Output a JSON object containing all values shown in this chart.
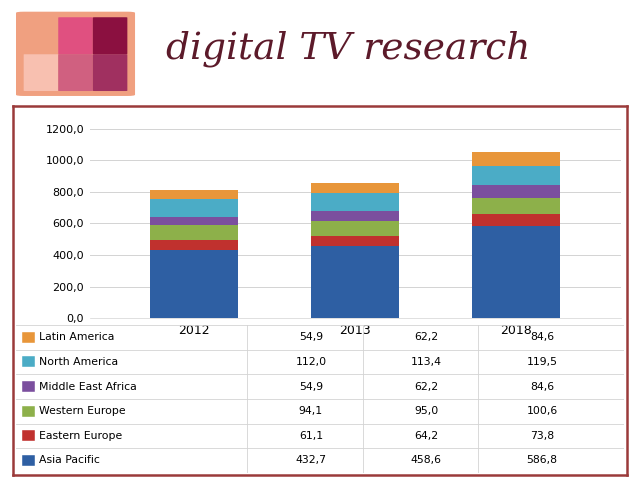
{
  "years": [
    "2012",
    "2013",
    "2018"
  ],
  "regions": [
    "Asia Pacific",
    "Eastern Europe",
    "Western Europe",
    "Middle East Africa",
    "North America",
    "Latin America"
  ],
  "colors": [
    "#2E5FA3",
    "#C0312E",
    "#8DB04A",
    "#7B4F9E",
    "#4BACC6",
    "#E8963A"
  ],
  "values": {
    "Asia Pacific": [
      432.7,
      458.6,
      586.8
    ],
    "Eastern Europe": [
      61.1,
      64.2,
      73.8
    ],
    "Western Europe": [
      94.1,
      95.0,
      100.6
    ],
    "Middle East Africa": [
      54.9,
      62.2,
      84.6
    ],
    "North America": [
      112.0,
      113.4,
      119.5
    ],
    "Latin America": [
      54.9,
      62.2,
      84.6
    ]
  },
  "table_rows": [
    [
      "Latin America",
      "54,9",
      "62,2",
      "84,6"
    ],
    [
      "North America",
      "112,0",
      "113,4",
      "119,5"
    ],
    [
      "Middle East Africa",
      "54,9",
      "62,2",
      "84,6"
    ],
    [
      "Western Europe",
      "94,1",
      "95,0",
      "100,6"
    ],
    [
      "Eastern Europe",
      "61,1",
      "64,2",
      "73,8"
    ],
    [
      "Asia Pacific",
      "432,7",
      "458,6",
      "586,8"
    ]
  ],
  "table_region_colors": [
    "#E8963A",
    "#4BACC6",
    "#7B4F9E",
    "#8DB04A",
    "#C0312E",
    "#2E5FA3"
  ],
  "ylim": [
    0,
    1300
  ],
  "yticks": [
    0,
    200,
    400,
    600,
    800,
    1000,
    1200
  ],
  "ytick_labels": [
    "0,0",
    "200,0",
    "400,0",
    "600,0",
    "800,0",
    "1000,0",
    "1200,0"
  ],
  "border_color": "#9B3A3A",
  "background_color": "#FFFFFF",
  "title_text": "digital TV research",
  "title_color": "#5C1A2A",
  "bar_width": 0.55,
  "logo_colors": [
    [
      "#F0A080",
      "#E05080",
      "#8B1040"
    ],
    [
      "#F8C0B0",
      "#D06080",
      "#A03060"
    ]
  ]
}
